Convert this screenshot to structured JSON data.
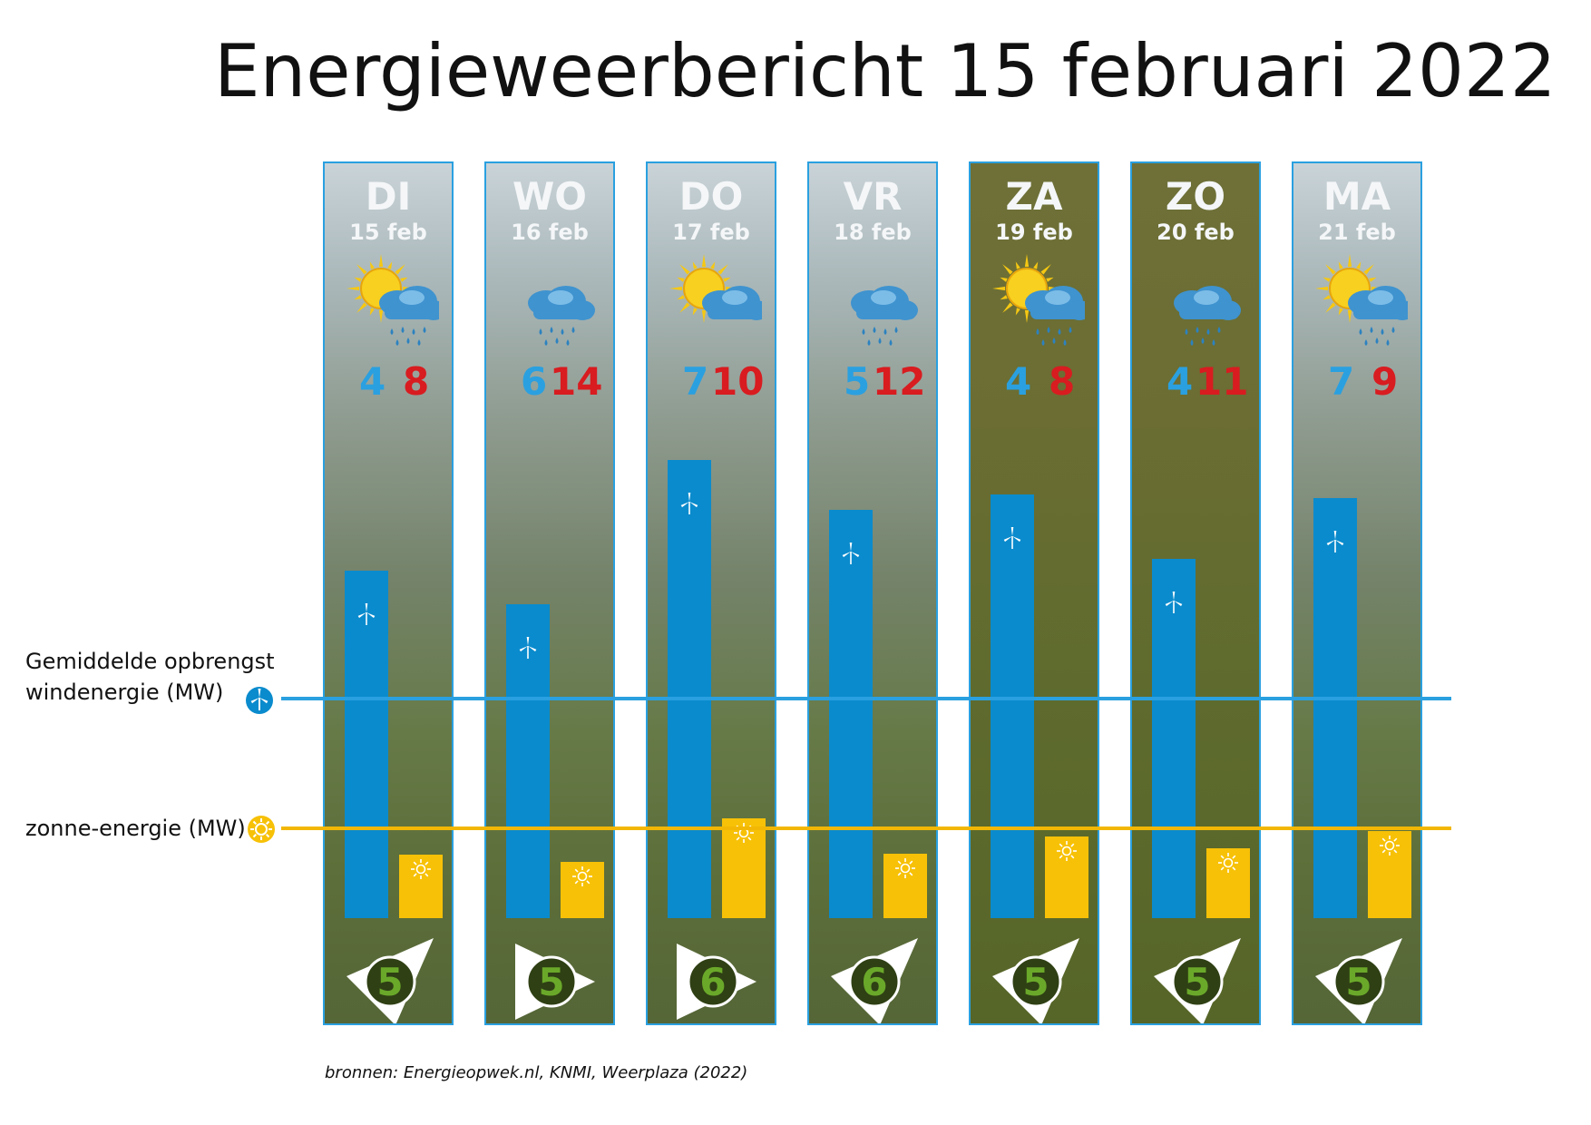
{
  "title": "Energieweerbericht 15 februari 2022",
  "legend": {
    "wind_line1": "Gemiddelde opbrengst",
    "wind_line2": "windenergie (MW)",
    "solar": "zonne-energie (MW)"
  },
  "source": "bronnen: Energieopwek.nl, KNMI, Weerplaza (2022)",
  "colors": {
    "wind": "#0a8bcd",
    "solar": "#f7c107",
    "wind_avg_line": "#2aa0e0",
    "solar_avg_line": "#f2b705",
    "tmin": "#2aa0e0",
    "tmax": "#d81c20",
    "wind_force": "#6aa82a"
  },
  "chart_data": {
    "type": "bar",
    "categories": [
      "DI",
      "WO",
      "DO",
      "VR",
      "ZA",
      "ZO",
      "MA"
    ],
    "dates": [
      "15 feb",
      "16 feb",
      "17 feb",
      "18 feb",
      "19 feb",
      "20 feb",
      "21 feb"
    ],
    "weekend": [
      false,
      false,
      false,
      false,
      true,
      true,
      false
    ],
    "weather_icon": [
      "sun-cloud-rain-icon",
      "cloud-rain-icon",
      "sun-cloud-icon",
      "cloud-rain-icon",
      "sun-cloud-rain-icon",
      "cloud-rain-icon",
      "sun-cloud-rain-icon"
    ],
    "temp_min": [
      4,
      6,
      7,
      5,
      4,
      4,
      7
    ],
    "temp_max": [
      8,
      14,
      10,
      12,
      8,
      11,
      9
    ],
    "wind_force": [
      5,
      5,
      6,
      6,
      5,
      5,
      5
    ],
    "wind_direction_arrow": [
      "south-west",
      "east",
      "east",
      "south-west",
      "south-west",
      "south-west",
      "south-west"
    ],
    "series": [
      {
        "name": "windenergie",
        "values": [
          383,
          346,
          505,
          450,
          467,
          396,
          463
        ]
      },
      {
        "name": "zonne-energie",
        "values": [
          70,
          62,
          110,
          71,
          90,
          77,
          96
        ]
      }
    ],
    "reference_lines": {
      "windenergie": 240,
      "zonne-energie": 97
    },
    "ylim": [
      0,
      540
    ]
  }
}
